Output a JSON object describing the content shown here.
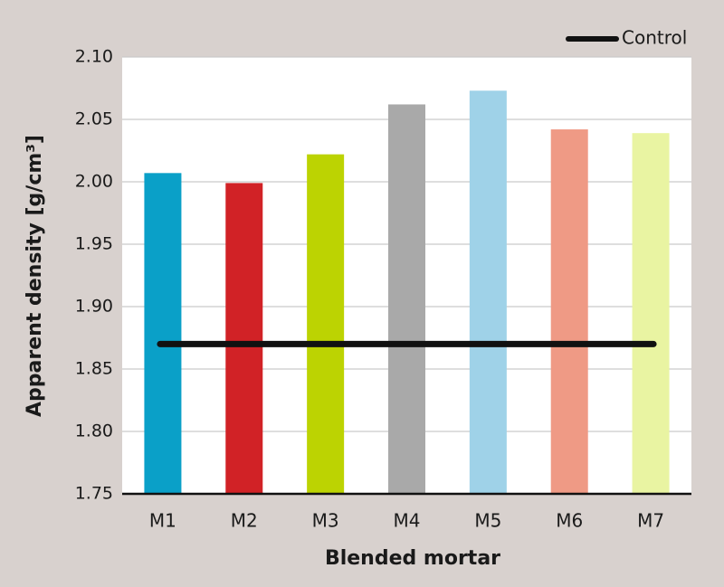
{
  "chart_data": {
    "type": "bar",
    "categories": [
      "M1",
      "M2",
      "M3",
      "M4",
      "M5",
      "M6",
      "M7"
    ],
    "values": [
      2.007,
      1.999,
      2.022,
      2.062,
      2.073,
      2.042,
      2.039
    ],
    "colors": [
      "#0aa0c8",
      "#d12226",
      "#bcd302",
      "#a9a9a9",
      "#9fd2e8",
      "#ef9a85",
      "#e9f4a2"
    ],
    "reference_line": {
      "name": "Control",
      "value": 1.87,
      "color": "#111111"
    },
    "xlabel": "Blended mortar",
    "ylabel": "Apparent density [g/cm³]",
    "ylim": [
      1.75,
      2.1
    ],
    "yticks": [
      "1.75",
      "1.80",
      "1.85",
      "1.90",
      "1.95",
      "2.00",
      "2.05",
      "2.10"
    ],
    "grid": true,
    "legend_position": "top-right"
  }
}
